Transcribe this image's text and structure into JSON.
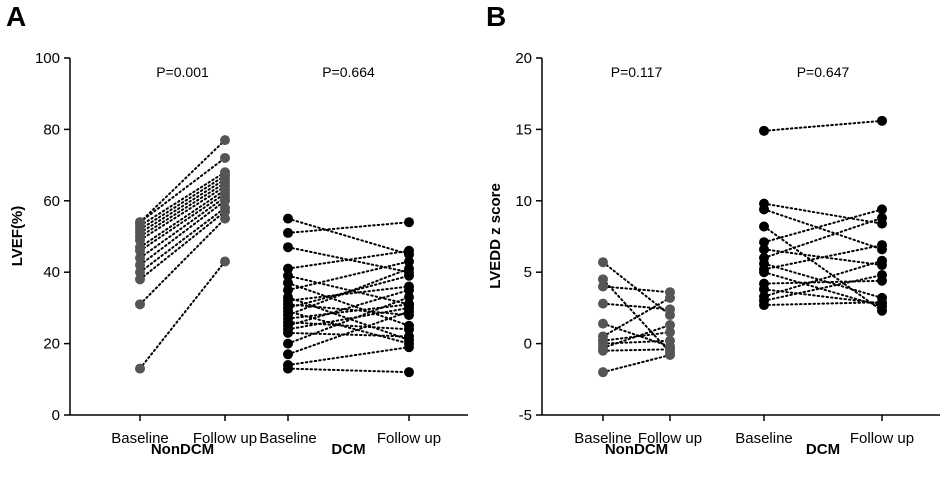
{
  "chart_data": [
    {
      "type": "scatter",
      "panel": "A",
      "ylabel": "LVEF(%)",
      "ylim": [
        0,
        100
      ],
      "yticks": [
        "0",
        "20",
        "40",
        "60",
        "80",
        "100"
      ],
      "xtick_labels": [
        "Baseline",
        "Follow up",
        "Baseline",
        "Follow up"
      ],
      "groups": [
        {
          "name": "NonDCM",
          "p_value": "P=0.001",
          "color": "#555555",
          "pairs": [
            [
              13,
              43
            ],
            [
              31,
              55
            ],
            [
              38,
              57
            ],
            [
              40,
              58
            ],
            [
              42,
              60
            ],
            [
              44,
              61
            ],
            [
              46,
              62
            ],
            [
              47,
              63
            ],
            [
              49,
              64
            ],
            [
              50,
              65
            ],
            [
              51,
              66
            ],
            [
              52,
              67
            ],
            [
              53,
              68
            ],
            [
              54,
              72
            ],
            [
              54,
              77
            ]
          ]
        },
        {
          "name": "DCM",
          "p_value": "P=0.664",
          "color": "#000000",
          "pairs": [
            [
              55,
              45
            ],
            [
              51,
              54
            ],
            [
              47,
              40
            ],
            [
              41,
              46
            ],
            [
              39,
              31
            ],
            [
              37,
              25
            ],
            [
              35,
              43
            ],
            [
              33,
              21
            ],
            [
              32,
              36
            ],
            [
              31,
              28
            ],
            [
              30,
              39
            ],
            [
              29,
              20
            ],
            [
              28,
              41
            ],
            [
              27,
              31
            ],
            [
              26,
              24
            ],
            [
              25,
              35
            ],
            [
              24,
              30
            ],
            [
              23,
              22
            ],
            [
              20,
              33
            ],
            [
              17,
              29
            ],
            [
              14,
              19
            ],
            [
              13,
              12
            ]
          ]
        }
      ]
    },
    {
      "type": "scatter",
      "panel": "B",
      "ylabel": "LVEDD z score",
      "ylim": [
        -5,
        20
      ],
      "yticks": [
        "-5",
        "0",
        "5",
        "10",
        "15",
        "20"
      ],
      "xtick_labels": [
        "Baseline",
        "Follow up",
        "Baseline",
        "Follow up"
      ],
      "groups": [
        {
          "name": "NonDCM",
          "p_value": "P=0.117",
          "color": "#555555",
          "pairs": [
            [
              5.7,
              2.0
            ],
            [
              4.5,
              -0.6
            ],
            [
              4.0,
              3.6
            ],
            [
              2.8,
              2.4
            ],
            [
              1.4,
              -0.2
            ],
            [
              0.5,
              3.2
            ],
            [
              0.2,
              0.8
            ],
            [
              0.0,
              0.2
            ],
            [
              -0.3,
              1.3
            ],
            [
              -0.5,
              -0.4
            ],
            [
              -2.0,
              -0.8
            ]
          ]
        },
        {
          "name": "DCM",
          "p_value": "P=0.647",
          "color": "#000000",
          "pairs": [
            [
              14.9,
              15.6
            ],
            [
              9.8,
              8.4
            ],
            [
              9.4,
              6.6
            ],
            [
              8.2,
              2.3
            ],
            [
              7.1,
              9.4
            ],
            [
              6.6,
              5.5
            ],
            [
              6.0,
              8.8
            ],
            [
              5.6,
              3.2
            ],
            [
              5.2,
              6.9
            ],
            [
              5.0,
              2.6
            ],
            [
              4.2,
              4.4
            ],
            [
              3.8,
              2.8
            ],
            [
              3.3,
              5.8
            ],
            [
              3.0,
              4.8
            ],
            [
              2.7,
              2.9
            ]
          ]
        }
      ]
    }
  ]
}
